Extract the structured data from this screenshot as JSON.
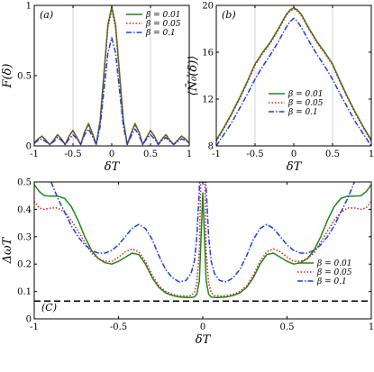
{
  "chart_data": [
    {
      "type": "line",
      "panel_tag": "(a)",
      "xlabel": "δT",
      "ylabel": "F(δ)",
      "xlim": [
        -1,
        1
      ],
      "ylim": [
        0,
        1
      ],
      "xticks": [
        "-1",
        "-0.5",
        "0",
        "0.5",
        "1"
      ],
      "yticks": [
        "0",
        "0.5",
        "1"
      ],
      "vertical_gridlines": [
        -0.5,
        0.5
      ],
      "legend_position": "top-right",
      "series": [
        {
          "name": "β = 0.01",
          "color": "#1a8a1a",
          "style": "solid",
          "x": [
            -1,
            -0.95,
            -0.9,
            -0.85,
            -0.8,
            -0.75,
            -0.7,
            -0.65,
            -0.6,
            -0.55,
            -0.5,
            -0.45,
            -0.4,
            -0.35,
            -0.3,
            -0.25,
            -0.2,
            -0.15,
            -0.1,
            -0.05,
            0,
            0.05,
            0.1,
            0.15,
            0.2,
            0.25,
            0.3,
            0.35,
            0.4,
            0.45,
            0.5,
            0.55,
            0.6,
            0.65,
            0.7,
            0.75,
            0.8,
            0.85,
            0.9,
            0.95,
            1
          ],
          "y": [
            0.02,
            0.05,
            0.07,
            0.04,
            0.01,
            0.04,
            0.08,
            0.05,
            0.01,
            0.07,
            0.11,
            0.06,
            0.01,
            0.1,
            0.16,
            0.09,
            0.01,
            0.18,
            0.52,
            0.86,
            0.99,
            0.86,
            0.52,
            0.18,
            0.01,
            0.09,
            0.16,
            0.1,
            0.01,
            0.06,
            0.11,
            0.07,
            0.01,
            0.05,
            0.08,
            0.04,
            0.01,
            0.04,
            0.07,
            0.05,
            0.02
          ]
        },
        {
          "name": "β = 0.05",
          "color": "#e8141e",
          "style": "dotted",
          "x": [
            -1,
            -0.95,
            -0.9,
            -0.85,
            -0.8,
            -0.75,
            -0.7,
            -0.65,
            -0.6,
            -0.55,
            -0.5,
            -0.45,
            -0.4,
            -0.35,
            -0.3,
            -0.25,
            -0.2,
            -0.15,
            -0.1,
            -0.05,
            0,
            0.05,
            0.1,
            0.15,
            0.2,
            0.25,
            0.3,
            0.35,
            0.4,
            0.45,
            0.5,
            0.55,
            0.6,
            0.65,
            0.7,
            0.75,
            0.8,
            0.85,
            0.9,
            0.95,
            1
          ],
          "y": [
            0.02,
            0.05,
            0.07,
            0.04,
            0.01,
            0.04,
            0.08,
            0.05,
            0.01,
            0.07,
            0.11,
            0.06,
            0.01,
            0.1,
            0.15,
            0.09,
            0.01,
            0.17,
            0.5,
            0.84,
            0.97,
            0.84,
            0.5,
            0.17,
            0.01,
            0.09,
            0.15,
            0.1,
            0.01,
            0.06,
            0.11,
            0.07,
            0.01,
            0.05,
            0.08,
            0.04,
            0.01,
            0.04,
            0.07,
            0.05,
            0.02
          ]
        },
        {
          "name": "β = 0.1",
          "color": "#1a3ee8",
          "style": "dashdot",
          "x": [
            -1,
            -0.95,
            -0.9,
            -0.85,
            -0.8,
            -0.75,
            -0.7,
            -0.65,
            -0.6,
            -0.55,
            -0.5,
            -0.45,
            -0.4,
            -0.35,
            -0.3,
            -0.25,
            -0.2,
            -0.15,
            -0.1,
            -0.05,
            0,
            0.05,
            0.1,
            0.15,
            0.2,
            0.25,
            0.3,
            0.35,
            0.4,
            0.45,
            0.5,
            0.55,
            0.6,
            0.65,
            0.7,
            0.75,
            0.8,
            0.85,
            0.9,
            0.95,
            1
          ],
          "y": [
            0.02,
            0.04,
            0.05,
            0.03,
            0.01,
            0.03,
            0.06,
            0.04,
            0.01,
            0.05,
            0.08,
            0.05,
            0.01,
            0.08,
            0.12,
            0.07,
            0.01,
            0.14,
            0.4,
            0.66,
            0.77,
            0.66,
            0.4,
            0.14,
            0.01,
            0.07,
            0.12,
            0.08,
            0.01,
            0.05,
            0.08,
            0.05,
            0.01,
            0.04,
            0.06,
            0.03,
            0.01,
            0.03,
            0.05,
            0.04,
            0.02
          ]
        }
      ]
    },
    {
      "type": "line",
      "panel_tag": "(b)",
      "xlabel": "δT",
      "ylabel": "⟨N̄₀(δ)⟩",
      "xlim": [
        -1,
        1
      ],
      "ylim": [
        8,
        20
      ],
      "xticks": [
        "-1",
        "-0.5",
        "0",
        "0.5",
        "1"
      ],
      "yticks": [
        "8",
        "12",
        "16",
        "20"
      ],
      "vertical_gridlines": [
        -0.5,
        0.5
      ],
      "legend_position": "lower-center",
      "series": [
        {
          "name": "β = 0.01",
          "color": "#1a8a1a",
          "style": "solid",
          "x": [
            -1,
            -0.9,
            -0.8,
            -0.7,
            -0.6,
            -0.5,
            -0.4,
            -0.3,
            -0.2,
            -0.15,
            -0.1,
            -0.05,
            0,
            0.05,
            0.1,
            0.15,
            0.2,
            0.3,
            0.4,
            0.5,
            0.6,
            0.7,
            0.8,
            0.9,
            1
          ],
          "y": [
            8.5,
            9.6,
            10.8,
            12.1,
            13.5,
            15.0,
            16.0,
            16.9,
            18.0,
            18.6,
            19.2,
            19.6,
            19.8,
            19.6,
            19.2,
            18.6,
            18.0,
            16.9,
            16.0,
            15.0,
            13.5,
            12.1,
            10.8,
            9.6,
            8.5
          ]
        },
        {
          "name": "β = 0.05",
          "color": "#e8141e",
          "style": "dotted",
          "x": [
            -1,
            -0.9,
            -0.8,
            -0.7,
            -0.6,
            -0.5,
            -0.4,
            -0.3,
            -0.2,
            -0.15,
            -0.1,
            -0.05,
            0,
            0.05,
            0.1,
            0.15,
            0.2,
            0.3,
            0.4,
            0.5,
            0.6,
            0.7,
            0.8,
            0.9,
            1
          ],
          "y": [
            8.4,
            9.5,
            10.7,
            12.0,
            13.4,
            14.9,
            15.9,
            16.8,
            17.9,
            18.5,
            19.1,
            19.5,
            19.7,
            19.5,
            19.1,
            18.5,
            17.9,
            16.8,
            15.9,
            14.9,
            13.4,
            12.0,
            10.7,
            9.5,
            8.4
          ]
        },
        {
          "name": "β = 0.1",
          "color": "#1a3ee8",
          "style": "dashdot",
          "x": [
            -1,
            -0.9,
            -0.8,
            -0.7,
            -0.6,
            -0.5,
            -0.4,
            -0.3,
            -0.2,
            -0.15,
            -0.1,
            -0.05,
            0,
            0.05,
            0.1,
            0.15,
            0.2,
            0.3,
            0.4,
            0.5,
            0.6,
            0.7,
            0.8,
            0.9,
            1
          ],
          "y": [
            8.0,
            9.0,
            10.0,
            11.2,
            12.4,
            13.7,
            14.8,
            15.8,
            16.9,
            17.5,
            18.1,
            18.6,
            18.9,
            18.6,
            18.1,
            17.5,
            16.9,
            15.8,
            14.8,
            13.7,
            12.4,
            11.2,
            10.0,
            9.0,
            8.0
          ]
        }
      ]
    },
    {
      "type": "line",
      "panel_tag": "(C)",
      "xlabel": "δT",
      "ylabel": "ΔωT",
      "xlim": [
        -1,
        1
      ],
      "ylim": [
        0,
        0.5
      ],
      "xticks": [
        "-1",
        "-0.5",
        "0",
        "0.5",
        "1"
      ],
      "yticks": [
        "0",
        "0.1",
        "0.2",
        "0.3",
        "0.4",
        "0.5"
      ],
      "legend_position": "lower-right",
      "reference_line": {
        "y": 0.065,
        "style": "dashed",
        "color": "#000000"
      },
      "series": [
        {
          "name": "β = 0.01",
          "color": "#1a8a1a",
          "style": "solid",
          "x": [
            -1,
            -0.97,
            -0.94,
            -0.9,
            -0.86,
            -0.82,
            -0.78,
            -0.74,
            -0.7,
            -0.66,
            -0.62,
            -0.58,
            -0.54,
            -0.5,
            -0.46,
            -0.42,
            -0.38,
            -0.34,
            -0.3,
            -0.26,
            -0.22,
            -0.18,
            -0.14,
            -0.1,
            -0.07,
            -0.05,
            -0.035,
            -0.02,
            -0.01,
            0,
            0.01,
            0.02,
            0.035,
            0.05,
            0.07,
            0.1,
            0.14,
            0.18,
            0.22,
            0.26,
            0.3,
            0.34,
            0.38,
            0.42,
            0.46,
            0.5,
            0.54,
            0.58,
            0.62,
            0.66,
            0.7,
            0.74,
            0.78,
            0.82,
            0.86,
            0.9,
            0.94,
            0.97,
            1
          ],
          "y": [
            0.49,
            0.465,
            0.45,
            0.448,
            0.448,
            0.44,
            0.41,
            0.36,
            0.3,
            0.25,
            0.22,
            0.205,
            0.2,
            0.21,
            0.225,
            0.24,
            0.235,
            0.2,
            0.15,
            0.115,
            0.095,
            0.085,
            0.08,
            0.078,
            0.078,
            0.08,
            0.09,
            0.14,
            0.3,
            0.46,
            0.3,
            0.14,
            0.09,
            0.08,
            0.078,
            0.078,
            0.08,
            0.085,
            0.095,
            0.115,
            0.15,
            0.2,
            0.235,
            0.24,
            0.225,
            0.21,
            0.2,
            0.205,
            0.22,
            0.25,
            0.3,
            0.36,
            0.41,
            0.44,
            0.448,
            0.448,
            0.45,
            0.465,
            0.49
          ]
        },
        {
          "name": "β = 0.05",
          "color": "#e8141e",
          "style": "dotted",
          "x": [
            -1,
            -0.97,
            -0.94,
            -0.9,
            -0.86,
            -0.82,
            -0.78,
            -0.74,
            -0.7,
            -0.66,
            -0.62,
            -0.58,
            -0.54,
            -0.5,
            -0.46,
            -0.42,
            -0.38,
            -0.34,
            -0.3,
            -0.26,
            -0.22,
            -0.18,
            -0.14,
            -0.1,
            -0.07,
            -0.05,
            -0.035,
            -0.02,
            -0.012,
            0.012,
            0.02,
            0.035,
            0.05,
            0.07,
            0.1,
            0.14,
            0.18,
            0.22,
            0.26,
            0.3,
            0.34,
            0.38,
            0.42,
            0.46,
            0.5,
            0.54,
            0.58,
            0.62,
            0.66,
            0.7,
            0.74,
            0.78,
            0.82,
            0.86,
            0.9,
            0.94,
            0.97,
            1
          ],
          "y": [
            0.43,
            0.405,
            0.4,
            0.405,
            0.405,
            0.39,
            0.36,
            0.32,
            0.28,
            0.24,
            0.22,
            0.21,
            0.21,
            0.225,
            0.245,
            0.255,
            0.245,
            0.21,
            0.16,
            0.12,
            0.1,
            0.09,
            0.085,
            0.083,
            0.085,
            0.095,
            0.13,
            0.25,
            0.5,
            0.5,
            0.25,
            0.13,
            0.095,
            0.085,
            0.083,
            0.085,
            0.09,
            0.1,
            0.12,
            0.16,
            0.21,
            0.245,
            0.255,
            0.245,
            0.225,
            0.21,
            0.21,
            0.22,
            0.24,
            0.28,
            0.32,
            0.36,
            0.39,
            0.405,
            0.405,
            0.4,
            0.405,
            0.43
          ]
        },
        {
          "name": "β = 0.1",
          "color": "#1a3ee8",
          "style": "dashdot",
          "x": [
            -0.9,
            -0.86,
            -0.82,
            -0.78,
            -0.74,
            -0.7,
            -0.66,
            -0.62,
            -0.58,
            -0.54,
            -0.5,
            -0.46,
            -0.42,
            -0.38,
            -0.34,
            -0.3,
            -0.26,
            -0.22,
            -0.18,
            -0.14,
            -0.1,
            -0.07,
            -0.05,
            -0.035,
            -0.025,
            -0.018,
            0.018,
            0.025,
            0.035,
            0.05,
            0.07,
            0.1,
            0.14,
            0.18,
            0.22,
            0.26,
            0.3,
            0.34,
            0.38,
            0.42,
            0.46,
            0.5,
            0.54,
            0.58,
            0.62,
            0.66,
            0.7,
            0.74,
            0.78,
            0.82,
            0.86,
            0.9
          ],
          "y": [
            0.5,
            0.44,
            0.39,
            0.34,
            0.3,
            0.27,
            0.25,
            0.24,
            0.24,
            0.25,
            0.27,
            0.3,
            0.33,
            0.345,
            0.33,
            0.29,
            0.23,
            0.18,
            0.15,
            0.135,
            0.14,
            0.165,
            0.21,
            0.3,
            0.42,
            0.5,
            0.5,
            0.42,
            0.3,
            0.21,
            0.165,
            0.14,
            0.135,
            0.15,
            0.18,
            0.23,
            0.29,
            0.33,
            0.345,
            0.33,
            0.3,
            0.27,
            0.25,
            0.24,
            0.24,
            0.25,
            0.27,
            0.3,
            0.34,
            0.39,
            0.44,
            0.5
          ]
        }
      ]
    }
  ]
}
